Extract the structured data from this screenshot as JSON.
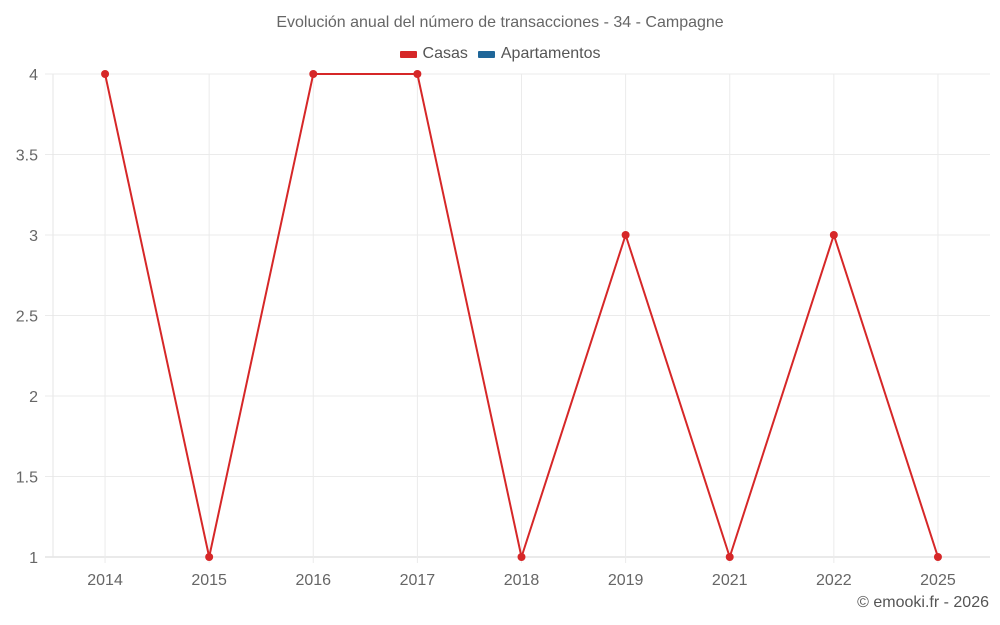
{
  "chart_data": {
    "type": "line",
    "title": "Evolución anual del número de transacciones - 34 - Campagne",
    "categories": [
      "2014",
      "2015",
      "2016",
      "2017",
      "2018",
      "2019",
      "2021",
      "2022",
      "2025"
    ],
    "series": [
      {
        "name": "Casas",
        "color": "#d62728",
        "values": [
          4,
          1,
          4,
          4,
          1,
          3,
          1,
          3,
          1
        ]
      },
      {
        "name": "Apartamentos",
        "color": "#1f6699",
        "values": []
      }
    ],
    "xlabel": "",
    "ylabel": "",
    "ylim": [
      1,
      4
    ],
    "yticks": [
      "1",
      "1.5",
      "2",
      "2.5",
      "3",
      "3.5",
      "4"
    ],
    "grid": true,
    "legend_position": "top"
  },
  "title": "Evolución anual del número de transacciones - 34 - Campagne",
  "legend": [
    {
      "label": "Casas",
      "color": "#d62728"
    },
    {
      "label": "Apartamentos",
      "color": "#1f6699"
    }
  ],
  "credit": "© emooki.fr - 2026"
}
